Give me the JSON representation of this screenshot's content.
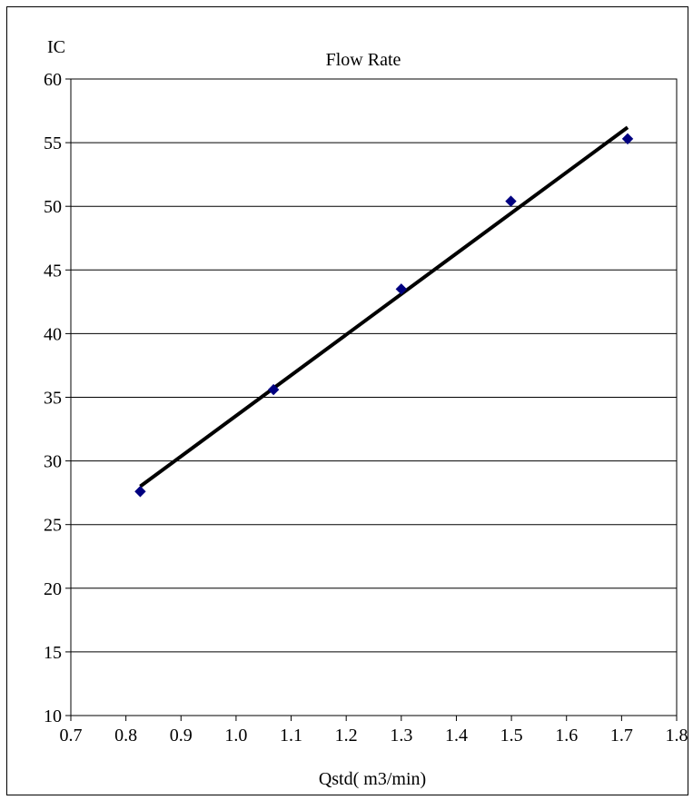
{
  "chart_data": {
    "type": "scatter",
    "title": "Flow Rate",
    "xlabel": "Qstd( m3/min)",
    "ylabel": "IC",
    "xlim": [
      0.7,
      1.8
    ],
    "ylim": [
      10,
      60
    ],
    "x_ticks": [
      "0.7",
      "0.8",
      "0.9",
      "1.0",
      "1.1",
      "1.2",
      "1.3",
      "1.4",
      "1.5",
      "1.6",
      "1.7",
      "1.8"
    ],
    "y_ticks": [
      "10",
      "15",
      "20",
      "25",
      "30",
      "35",
      "40",
      "45",
      "50",
      "55",
      "60"
    ],
    "grid": "horizontal",
    "legend": "none",
    "series": [
      {
        "marker": "diamond",
        "color": "#000080",
        "x": [
          0.826,
          1.068,
          1.3,
          1.499,
          1.711
        ],
        "y": [
          27.6,
          35.6,
          43.5,
          50.4,
          55.3
        ]
      }
    ],
    "trendline": {
      "color": "#000000",
      "x": [
        0.826,
        1.711
      ],
      "y": [
        28.0,
        56.2
      ]
    }
  }
}
